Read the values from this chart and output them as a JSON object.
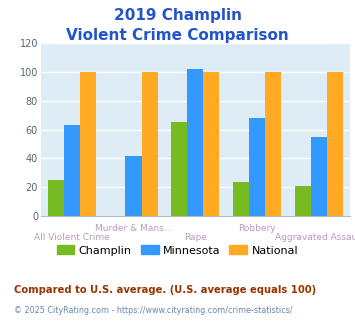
{
  "title_line1": "2019 Champlin",
  "title_line2": "Violent Crime Comparison",
  "categories": [
    "All Violent Crime",
    "Murder & Mans...",
    "Rape",
    "Robbery",
    "Aggravated Assault"
  ],
  "champlin": [
    25,
    0,
    65,
    24,
    21
  ],
  "minnesota": [
    63,
    42,
    102,
    68,
    55
  ],
  "national": [
    100,
    100,
    100,
    100,
    100
  ],
  "champlin_color": "#77bb22",
  "minnesota_color": "#3399ff",
  "national_color": "#ffaa22",
  "plot_bg": "#deedf5",
  "title_color": "#2255cc",
  "xlabel_top_color": "#bb99bb",
  "xlabel_bot_color": "#bb99bb",
  "ytick_color": "#556677",
  "legend_labels": [
    "Champlin",
    "Minnesota",
    "National"
  ],
  "footnote1": "Compared to U.S. average. (U.S. average equals 100)",
  "footnote2": "© 2025 CityRating.com - https://www.cityrating.com/crime-statistics/",
  "footnote1_color": "#993300",
  "footnote2_color": "#6688aa",
  "ylim": [
    0,
    120
  ],
  "yticks": [
    0,
    20,
    40,
    60,
    80,
    100,
    120
  ]
}
